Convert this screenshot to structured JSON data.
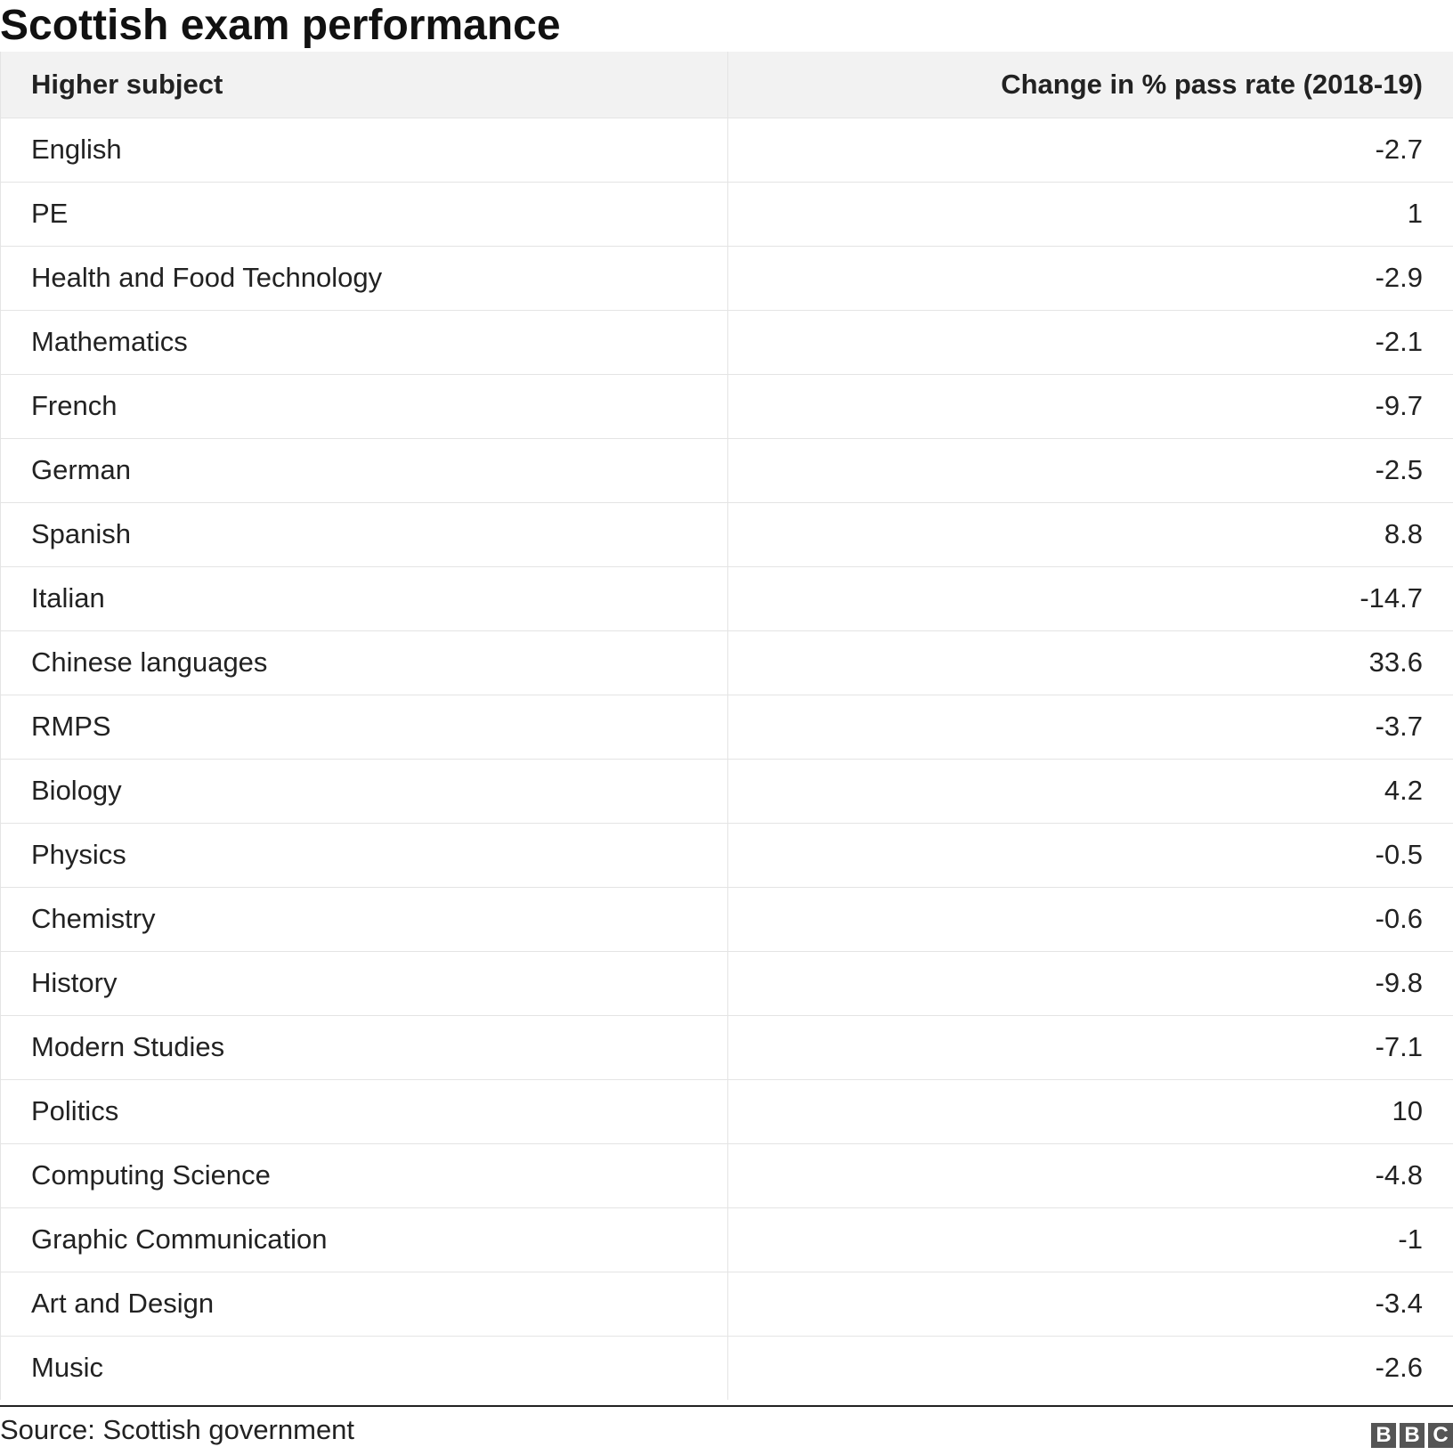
{
  "chart_data": {
    "type": "table",
    "title": "Scottish exam performance",
    "columns": [
      "Higher subject",
      "Change in % pass rate (2018-19)"
    ],
    "rows": [
      {
        "subject": "English",
        "change": "-2.7"
      },
      {
        "subject": "PE",
        "change": "1"
      },
      {
        "subject": "Health and Food Technology",
        "change": "-2.9"
      },
      {
        "subject": "Mathematics",
        "change": "-2.1"
      },
      {
        "subject": "French",
        "change": "-9.7"
      },
      {
        "subject": "German",
        "change": "-2.5"
      },
      {
        "subject": "Spanish",
        "change": "8.8"
      },
      {
        "subject": "Italian",
        "change": "-14.7"
      },
      {
        "subject": "Chinese languages",
        "change": "33.6"
      },
      {
        "subject": "RMPS",
        "change": "-3.7"
      },
      {
        "subject": "Biology",
        "change": "4.2"
      },
      {
        "subject": "Physics",
        "change": "-0.5"
      },
      {
        "subject": "Chemistry",
        "change": "-0.6"
      },
      {
        "subject": "History",
        "change": "-9.8"
      },
      {
        "subject": "Modern Studies",
        "change": "-7.1"
      },
      {
        "subject": "Politics",
        "change": "10"
      },
      {
        "subject": "Computing Science",
        "change": "-4.8"
      },
      {
        "subject": "Graphic Communication",
        "change": "-1"
      },
      {
        "subject": "Art and Design",
        "change": "-3.4"
      },
      {
        "subject": "Music",
        "change": "-2.6"
      }
    ],
    "source": "Source: Scottish government",
    "logo": [
      "B",
      "B",
      "C"
    ]
  }
}
